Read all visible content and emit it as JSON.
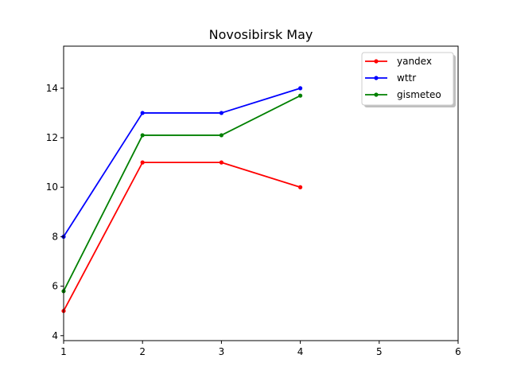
{
  "chart_data": {
    "type": "line",
    "title": "Novosibirsk May",
    "xlabel": "",
    "ylabel": "",
    "xlim": [
      1,
      6
    ],
    "ylim": [
      3.8,
      15.7
    ],
    "x_ticks": [
      1,
      2,
      3,
      4,
      5,
      6
    ],
    "y_ticks": [
      4,
      6,
      8,
      10,
      12,
      14
    ],
    "grid": false,
    "legend_position": "top-right",
    "series": [
      {
        "name": "yandex",
        "color": "#ff0000",
        "x": [
          1,
          2,
          3,
          4
        ],
        "y": [
          5,
          11,
          11,
          10
        ]
      },
      {
        "name": "wttr",
        "color": "#0000ff",
        "x": [
          1,
          2,
          3,
          4
        ],
        "y": [
          8,
          13,
          13,
          14
        ]
      },
      {
        "name": "gismeteo",
        "color": "#008000",
        "x": [
          1,
          2,
          3,
          4
        ],
        "y": [
          5.8,
          12.1,
          12.1,
          13.7
        ]
      }
    ]
  }
}
